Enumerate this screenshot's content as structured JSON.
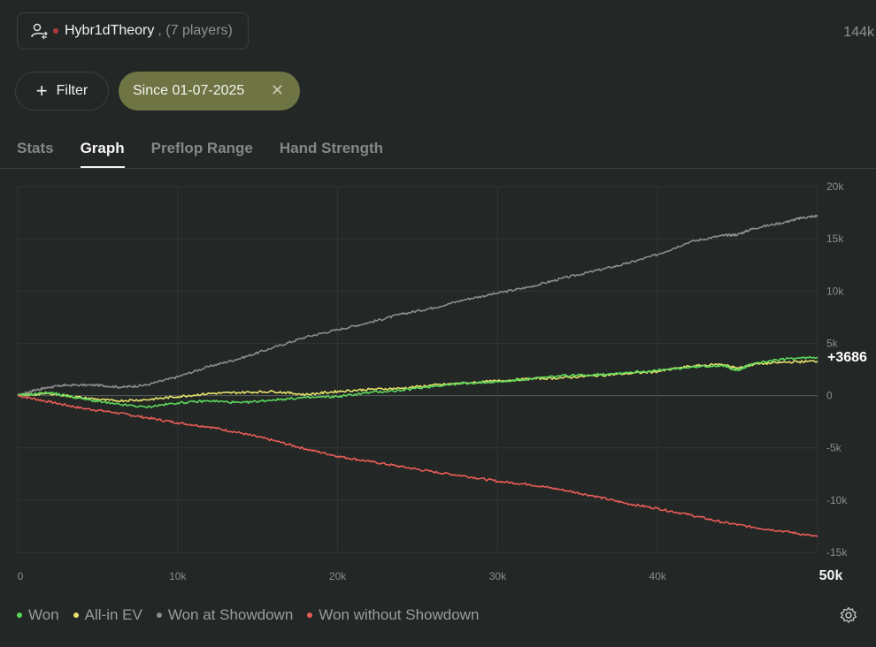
{
  "player": {
    "name": "Hybr1dTheory",
    "count": ", (7 players)"
  },
  "hands_total": "144k",
  "filter": {
    "label": "Filter"
  },
  "date_filter": {
    "label": "Since 01-07-2025"
  },
  "tabs": [
    {
      "label": "Stats",
      "active": false
    },
    {
      "label": "Graph",
      "active": true
    },
    {
      "label": "Preflop Range",
      "active": false
    },
    {
      "label": "Hand Strength",
      "active": false
    }
  ],
  "chart_data": {
    "type": "line",
    "x_ticks": [
      0,
      10000,
      20000,
      30000,
      40000,
      50000
    ],
    "x_tick_labels": [
      "0",
      "10k",
      "20k",
      "30k",
      "40k",
      "50k"
    ],
    "y_ticks": [
      20000,
      15000,
      10000,
      5000,
      0,
      -5000,
      -10000,
      -15000
    ],
    "y_tick_labels": [
      "20k",
      "15k",
      "10k",
      "5k",
      "0",
      "-5k",
      "-10k",
      "-15k"
    ],
    "xlim": [
      0,
      50000
    ],
    "ylim": [
      -15000,
      20000
    ],
    "grid": true,
    "final_label": "+3686",
    "series": [
      {
        "name": "Won at Showdown",
        "color": "#8c8c8c",
        "x": [
          0,
          1000,
          2000,
          3000,
          5000,
          6500,
          8000,
          10000,
          12000,
          14000,
          16000,
          18000,
          20000,
          22000,
          24000,
          26000,
          28000,
          30000,
          32000,
          34000,
          36000,
          38000,
          40000,
          42000,
          44000,
          45000,
          46000,
          48000,
          49000,
          50000
        ],
        "y": [
          0,
          500,
          800,
          1000,
          1000,
          800,
          1000,
          1800,
          2800,
          3600,
          4600,
          5600,
          6300,
          7000,
          7800,
          8400,
          9200,
          9800,
          10400,
          11200,
          11900,
          12600,
          13500,
          14700,
          15300,
          15400,
          16000,
          16600,
          17000,
          17200
        ]
      },
      {
        "name": "All-in EV",
        "color": "#e6e46a",
        "x": [
          0,
          2000,
          4000,
          6000,
          8000,
          10000,
          12000,
          14000,
          16000,
          18000,
          20000,
          22000,
          24000,
          26000,
          28000,
          30000,
          32000,
          34000,
          36000,
          38000,
          40000,
          42000,
          44000,
          45000,
          46000,
          48000,
          50000
        ],
        "y": [
          0,
          200,
          -200,
          -500,
          -400,
          -100,
          200,
          300,
          400,
          100,
          400,
          600,
          700,
          1000,
          1200,
          1400,
          1600,
          1700,
          1900,
          2100,
          2300,
          2800,
          3000,
          2600,
          3000,
          3200,
          3300
        ]
      },
      {
        "name": "Won",
        "color": "#5cd65c",
        "x": [
          0,
          2000,
          4000,
          6000,
          8000,
          10000,
          12000,
          14000,
          16000,
          18000,
          20000,
          22000,
          24000,
          26000,
          28000,
          30000,
          32000,
          34000,
          36000,
          38000,
          40000,
          42000,
          44000,
          45000,
          46000,
          48000,
          50000
        ],
        "y": [
          0,
          300,
          -300,
          -800,
          -1100,
          -700,
          -500,
          -700,
          -400,
          -200,
          -100,
          300,
          500,
          900,
          1200,
          1300,
          1600,
          1900,
          2000,
          2200,
          2400,
          2700,
          2900,
          2400,
          3100,
          3500,
          3686
        ]
      },
      {
        "name": "Won without Showdown",
        "color": "#e85c58",
        "x": [
          0,
          2000,
          4000,
          6000,
          8000,
          10000,
          12000,
          14000,
          16000,
          18000,
          20000,
          22000,
          24000,
          26000,
          28000,
          30000,
          32000,
          34000,
          36000,
          38000,
          40000,
          42000,
          44000,
          46000,
          48000,
          50000
        ],
        "y": [
          0,
          -600,
          -1200,
          -1600,
          -2100,
          -2600,
          -3000,
          -3600,
          -4300,
          -5100,
          -5800,
          -6300,
          -6800,
          -7300,
          -7700,
          -8200,
          -8500,
          -9000,
          -9600,
          -10300,
          -10800,
          -11400,
          -12100,
          -12600,
          -13000,
          -13500
        ]
      }
    ]
  },
  "legend": [
    {
      "label": "Won",
      "color": "#5cd65c"
    },
    {
      "label": "All-in EV",
      "color": "#e6e46a"
    },
    {
      "label": "Won at Showdown",
      "color": "#8c8c8c"
    },
    {
      "label": "Won without Showdown",
      "color": "#e85c58"
    }
  ],
  "icons": {
    "player": "user-switch-icon",
    "settings": "gear-icon",
    "add": "plus-icon",
    "remove": "close-icon"
  }
}
